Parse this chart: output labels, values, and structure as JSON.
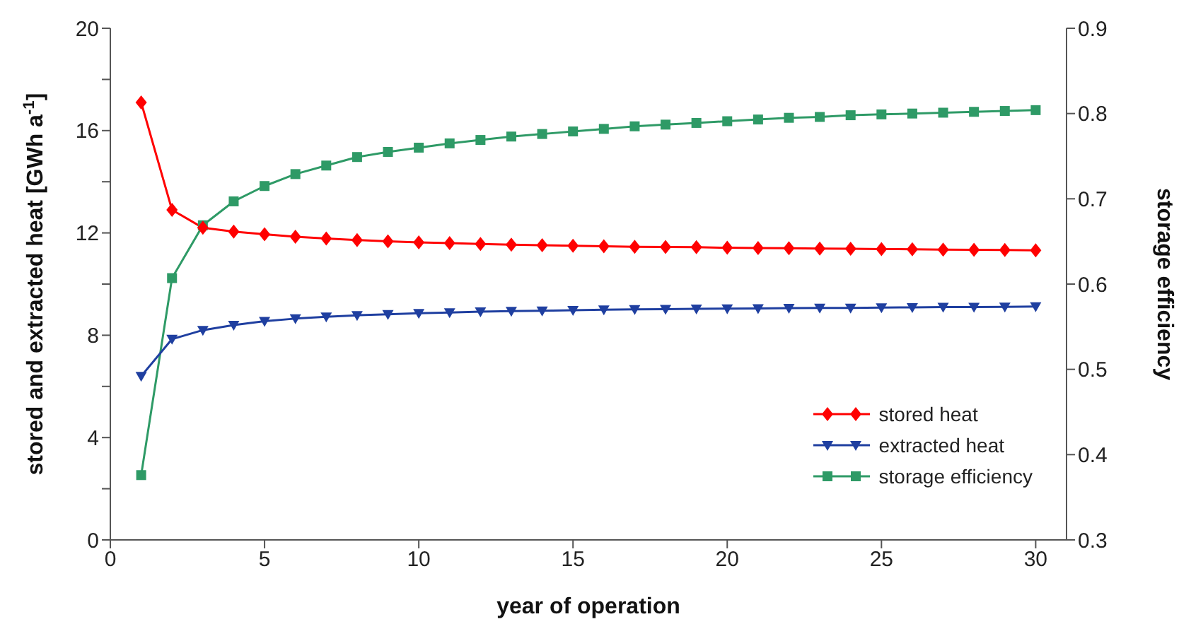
{
  "chart_data": {
    "type": "line",
    "xlabel": "year of operation",
    "ylabel": "stored and extracted heat [GWh a$^{-1}$]",
    "y2label": "storage efficiency",
    "x": [
      1,
      2,
      3,
      4,
      5,
      6,
      7,
      8,
      9,
      10,
      11,
      12,
      13,
      14,
      15,
      16,
      17,
      18,
      19,
      20,
      21,
      22,
      23,
      24,
      25,
      26,
      27,
      28,
      29,
      30
    ],
    "xlim": [
      0,
      31
    ],
    "xticks": [
      0,
      5,
      10,
      15,
      20,
      25,
      30
    ],
    "ylim": [
      0,
      20
    ],
    "yticks": [
      0,
      {
        "value": 2,
        "label": null
      },
      4,
      {
        "value": 6,
        "label": null
      },
      8,
      {
        "value": 10,
        "label": null
      },
      12,
      {
        "value": 14,
        "label": null
      },
      16,
      {
        "value": 18,
        "label": null
      },
      20
    ],
    "y2lim": [
      0.3,
      0.9
    ],
    "y2ticks": [
      0.3,
      0.4,
      0.5,
      0.6,
      0.7,
      0.8,
      0.9
    ],
    "legend": "bottom right",
    "line_style": "solid",
    "series": [
      {
        "name": "stored heat",
        "color": "#ff0000",
        "marker": "diamond",
        "values": [
          17.1,
          12.9,
          12.2,
          12.05,
          11.95,
          11.85,
          11.78,
          11.72,
          11.67,
          11.63,
          11.6,
          11.57,
          11.54,
          11.52,
          11.5,
          11.48,
          11.46,
          11.45,
          11.44,
          11.42,
          11.41,
          11.4,
          11.39,
          11.38,
          11.37,
          11.36,
          11.35,
          11.34,
          11.33,
          11.32
        ]
      },
      {
        "name": "extracted heat",
        "color": "#1f3fa0",
        "marker": "triangle",
        "values": [
          6.4,
          7.85,
          8.2,
          8.4,
          8.55,
          8.65,
          8.72,
          8.78,
          8.82,
          8.86,
          8.89,
          8.92,
          8.94,
          8.96,
          8.98,
          9.0,
          9.01,
          9.02,
          9.03,
          9.04,
          9.05,
          9.06,
          9.07,
          9.07,
          9.08,
          9.09,
          9.1,
          9.1,
          9.11,
          9.12
        ]
      },
      {
        "name": "storage efficiency",
        "color": "#2e9a66",
        "marker": "square",
        "axis": "y2",
        "values": [
          0.376,
          0.607,
          0.669,
          0.697,
          0.715,
          0.729,
          0.739,
          0.749,
          0.755,
          0.76,
          0.765,
          0.769,
          0.773,
          0.776,
          0.779,
          0.782,
          0.785,
          0.787,
          0.789,
          0.791,
          0.793,
          0.795,
          0.796,
          0.798,
          0.799,
          0.8,
          0.801,
          0.802,
          0.803,
          0.804
        ]
      }
    ]
  }
}
